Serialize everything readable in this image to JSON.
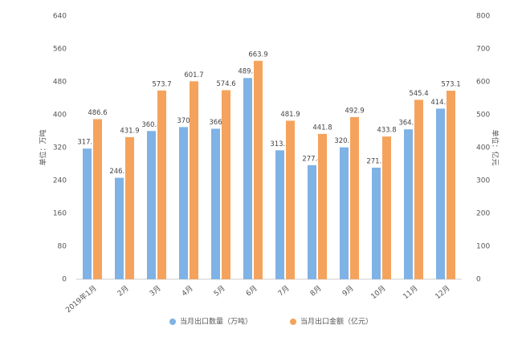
{
  "chart_data": {
    "type": "bar",
    "categories": [
      "2019年1月",
      "2月",
      "3月",
      "4月",
      "5月",
      "6月",
      "7月",
      "8月",
      "9月",
      "10月",
      "11月",
      "12月"
    ],
    "series": [
      {
        "name": "当月出口数量（万吨）",
        "color": "#7fb2e5",
        "values": [
          317.7,
          246.7,
          360.4,
          370,
          366,
          489.3,
          313.5,
          277.4,
          320.7,
          271.3,
          364.5,
          414.8
        ]
      },
      {
        "name": "当月出口金额（亿元）",
        "color": "#f5a35c",
        "axis": "y2",
        "values": [
          486.6,
          431.9,
          573.7,
          601.7,
          574.6,
          663.9,
          481.9,
          441.8,
          492.9,
          433.8,
          545.4,
          573.1
        ]
      }
    ],
    "ylabel": "单位：万吨",
    "y2label": "单位：亿元",
    "ylim": [
      0,
      640
    ],
    "yticks": [
      0,
      80,
      160,
      240,
      320,
      400,
      480,
      560,
      640
    ],
    "y2lim": [
      0,
      800
    ],
    "y2ticks": [
      0,
      100,
      200,
      300,
      400,
      500,
      600,
      700,
      800
    ],
    "legend": "bottom"
  }
}
